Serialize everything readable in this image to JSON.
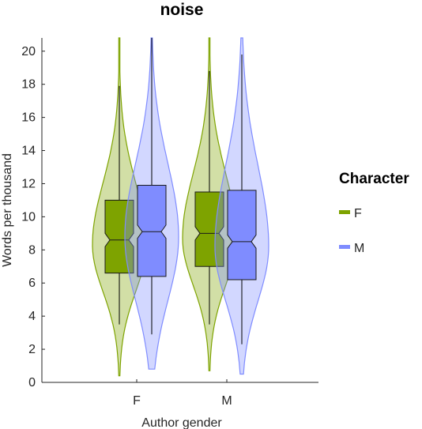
{
  "chart_data": {
    "type": "violin-box",
    "title": "noise",
    "xlabel": "Author gender",
    "ylabel": "Words per thousand",
    "categories": [
      "F",
      "M"
    ],
    "ylim": [
      0,
      20.8
    ],
    "yticks": [
      0,
      2,
      4,
      6,
      8,
      10,
      12,
      14,
      16,
      18,
      20
    ],
    "grid": false,
    "legend": {
      "title": "Character",
      "position": "right"
    },
    "series": [
      {
        "name": "F",
        "color": "#7ea300",
        "groups": [
          {
            "category": "F",
            "q1": 6.6,
            "median": 8.6,
            "q3": 11.0,
            "notch": [
              8.2,
              9.0
            ],
            "whisker_low": 3.5,
            "whisker_high": 17.9,
            "violin_min": 0.4,
            "violin_max": 20.8
          },
          {
            "category": "M",
            "q1": 7.0,
            "median": 9.0,
            "q3": 11.5,
            "notch": [
              8.6,
              9.4
            ],
            "whisker_low": 3.5,
            "whisker_high": 18.8,
            "violin_min": 0.7,
            "violin_max": 20.8
          }
        ]
      },
      {
        "name": "M",
        "color": "#7f8cff",
        "groups": [
          {
            "category": "F",
            "q1": 6.4,
            "median": 9.1,
            "q3": 11.9,
            "notch": [
              8.7,
              9.5
            ],
            "whisker_low": 2.9,
            "whisker_high": 20.8,
            "violin_min": 0.8,
            "violin_max": 20.8
          },
          {
            "category": "M",
            "q1": 6.2,
            "median": 8.5,
            "q3": 11.6,
            "notch": [
              8.1,
              8.9
            ],
            "whisker_low": 2.3,
            "whisker_high": 19.8,
            "violin_min": 0.5,
            "violin_max": 20.8
          }
        ]
      }
    ]
  }
}
